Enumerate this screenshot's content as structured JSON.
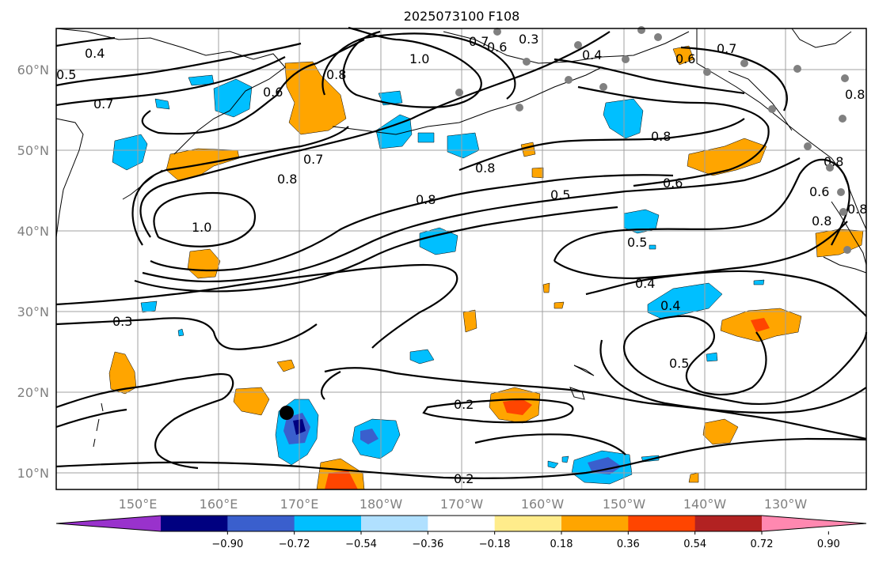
{
  "title": "2025073100 F108",
  "lat_labels": [
    "60°N",
    "50°N",
    "40°N",
    "30°N",
    "20°N",
    "10°N"
  ],
  "lon_labels": [
    "150°E",
    "160°E",
    "170°E",
    "180°W",
    "170°W",
    "160°W",
    "150°W",
    "140°W",
    "130°W"
  ],
  "colorbar": {
    "colors": [
      "#9932CC",
      "#000080",
      "#3A5FCD",
      "#00BFFF",
      "#B0E0FF",
      "#FFFFFF",
      "#FFEC8B",
      "#FFA500",
      "#FF4500",
      "#B22222",
      "#FF88B0"
    ],
    "ticks": [
      "−0.90",
      "−0.72",
      "−0.54",
      "−0.36",
      "−0.18",
      "0.18",
      "0.36",
      "0.54",
      "0.72",
      "0.90"
    ]
  },
  "contour_labels": [
    "0.4",
    "0.5",
    "0.7",
    "0.6",
    "0.8",
    "1.0",
    "0.7",
    "0.6",
    "0.3",
    "0.4",
    "0.6",
    "0.7",
    "0.8",
    "0.7",
    "0.8",
    "0.8",
    "0.8",
    "0.5",
    "0.6",
    "0.8",
    "0.6",
    "0.8",
    "1.0",
    "0.5",
    "0.4",
    "0.4",
    "0.3",
    "0.5",
    "0.2",
    "0.2",
    "0.8",
    "0.8"
  ],
  "colors": {
    "light_blue": "#00BFFF",
    "mid_blue": "#3A5FCD",
    "dark_blue": "#000080",
    "orange": "#FFA500",
    "red_orange": "#FF4500",
    "dot_gray": "#808080",
    "marker": "#000000"
  }
}
